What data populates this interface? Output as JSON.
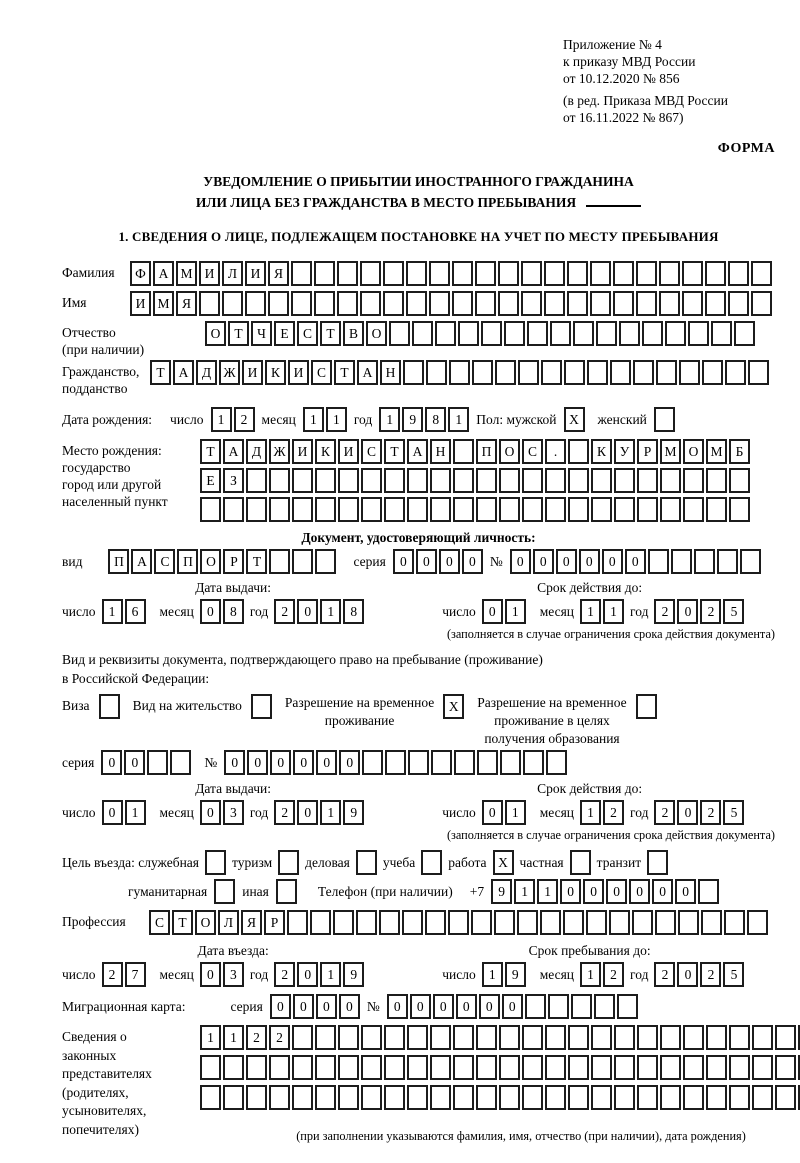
{
  "header": {
    "line1": "Приложение № 4",
    "line2": "к приказу МВД России",
    "line3": "от 10.12.2020 № 856",
    "line4": "(в ред. Приказа МВД России",
    "line5": "от 16.11.2022 № 867)",
    "forma": "ФОРМА"
  },
  "title": {
    "line1": "УВЕДОМЛЕНИЕ О ПРИБЫТИИ ИНОСТРАННОГО ГРАЖДАНИНА",
    "line2": "ИЛИ ЛИЦА БЕЗ ГРАЖДАНСТВА В МЕСТО ПРЕБЫВАНИЯ"
  },
  "section1_heading": "1. СВЕДЕНИЯ О ЛИЦЕ, ПОДЛЕЖАЩЕМ ПОСТАНОВКЕ НА УЧЕТ ПО МЕСТУ ПРЕБЫВАНИЯ",
  "labels": {
    "surname": "Фамилия",
    "name": "Имя",
    "patronymic": "Отчество",
    "patronymic2": "(при наличии)",
    "citizenship1": "Гражданство,",
    "citizenship2": "подданство",
    "birthdate": "Дата рождения:",
    "day": "число",
    "month": "месяц",
    "year": "год",
    "sex_male": "Пол: мужской",
    "sex_female": "женский",
    "birthplace1": "Место рождения:",
    "birthplace2": "государство",
    "birthplace3": "город или другой",
    "birthplace4": "населенный пункт",
    "iddoc_heading": "Документ, удостоверяющий личность:",
    "kind": "вид",
    "series": "серия",
    "number": "№",
    "issue_date": "Дата выдачи:",
    "expiry": "Срок действия до:",
    "expiry_note": "(заполняется в случае ограничения срока действия документа)",
    "resdoc1": "Вид и реквизиты документа, подтверждающего право на пребывание (проживание)",
    "resdoc2": "в Российской Федерации:",
    "visa": "Виза",
    "residence": "Вид на жительство",
    "rvp1": "Разрешение на временное",
    "rvp2": "проживание",
    "rvpedu1": "Разрешение на временное",
    "rvpedu2": "проживание в целях",
    "rvpedu3": "получения образования",
    "purpose": "Цель въезда: служебная",
    "tourism": "туризм",
    "business": "деловая",
    "study": "учеба",
    "work": "работа",
    "private": "частная",
    "transit": "транзит",
    "humanitarian": "гуманитарная",
    "other": "иная",
    "phone": "Телефон (при наличии)",
    "phone_prefix": "+7",
    "profession": "Профессия",
    "entry_date": "Дата въезда:",
    "stay_until": "Срок пребывания до:",
    "migcard": "Миграционная карта:",
    "rep1": "Сведения о",
    "rep2": "законных",
    "rep3": "представителях",
    "rep4": "(родителях,",
    "rep5": "усыновителях,",
    "rep6": "попечителях)",
    "rep_note": "(при заполнении указываются фамилия, имя, отчество (при наличии), дата рождения)"
  },
  "cells": {
    "surname": {
      "count": 28,
      "value": "ФАМИЛИЯ"
    },
    "name": {
      "count": 28,
      "value": "ИМЯ"
    },
    "patronymic": {
      "count": 24,
      "value": "ОТЧЕСТВО"
    },
    "citizenship": {
      "count": 27,
      "value": "ТАДЖИКИСТАН"
    },
    "birth_day": {
      "count": 2,
      "value": "12"
    },
    "birth_month": {
      "count": 2,
      "value": "11"
    },
    "birth_year": {
      "count": 4,
      "value": "1981"
    },
    "sex_male": {
      "count": 1,
      "value": "X"
    },
    "sex_female": {
      "count": 1,
      "value": ""
    },
    "birthplace1": {
      "count": 24,
      "value": "ТАДЖИКИСТАН ПОС. КУРМОМБ"
    },
    "birthplace2": {
      "count": 24,
      "value": "ЕЗ"
    },
    "birthplace3": {
      "count": 24,
      "value": ""
    },
    "iddoc_kind": {
      "count": 10,
      "value": "ПАСПОРТ"
    },
    "iddoc_series": {
      "count": 4,
      "value": "0000"
    },
    "iddoc_number": {
      "count": 11,
      "value": "000000"
    },
    "iddoc_issue_day": {
      "count": 2,
      "value": "16"
    },
    "iddoc_issue_month": {
      "count": 2,
      "value": "08"
    },
    "iddoc_issue_year": {
      "count": 4,
      "value": "2018"
    },
    "iddoc_exp_day": {
      "count": 2,
      "value": "01"
    },
    "iddoc_exp_month": {
      "count": 2,
      "value": "11"
    },
    "iddoc_exp_year": {
      "count": 4,
      "value": "2025"
    },
    "visa_box": {
      "count": 1,
      "value": ""
    },
    "residence_box": {
      "count": 1,
      "value": ""
    },
    "rvp_box": {
      "count": 1,
      "value": "X"
    },
    "rvp_edu_box": {
      "count": 1,
      "value": ""
    },
    "resdoc_series": {
      "count": 4,
      "value": "00"
    },
    "resdoc_number": {
      "count": 15,
      "value": "000000"
    },
    "resdoc_issue_day": {
      "count": 2,
      "value": "01"
    },
    "resdoc_issue_month": {
      "count": 2,
      "value": "03"
    },
    "resdoc_issue_year": {
      "count": 4,
      "value": "2019"
    },
    "resdoc_exp_day": {
      "count": 2,
      "value": "01"
    },
    "resdoc_exp_month": {
      "count": 2,
      "value": "12"
    },
    "resdoc_exp_year": {
      "count": 4,
      "value": "2025"
    },
    "purpose_official": {
      "count": 1,
      "value": ""
    },
    "purpose_tourism": {
      "count": 1,
      "value": ""
    },
    "purpose_business": {
      "count": 1,
      "value": ""
    },
    "purpose_study": {
      "count": 1,
      "value": ""
    },
    "purpose_work": {
      "count": 1,
      "value": "X"
    },
    "purpose_private": {
      "count": 1,
      "value": ""
    },
    "purpose_transit": {
      "count": 1,
      "value": ""
    },
    "purpose_humanitarian": {
      "count": 1,
      "value": ""
    },
    "purpose_other": {
      "count": 1,
      "value": ""
    },
    "phone": {
      "count": 10,
      "value": "911000000"
    },
    "profession": {
      "count": 27,
      "value": "СТОЛЯР"
    },
    "entry_day": {
      "count": 2,
      "value": "27"
    },
    "entry_month": {
      "count": 2,
      "value": "03"
    },
    "entry_year": {
      "count": 4,
      "value": "2019"
    },
    "stay_day": {
      "count": 2,
      "value": "19"
    },
    "stay_month": {
      "count": 2,
      "value": "12"
    },
    "stay_year": {
      "count": 4,
      "value": "2025"
    },
    "mig_series": {
      "count": 4,
      "value": "0000"
    },
    "mig_number": {
      "count": 11,
      "value": "000000"
    },
    "rep_row1": {
      "count": 28,
      "value": "1122"
    },
    "rep_row2": {
      "count": 28,
      "value": ""
    },
    "rep_row3": {
      "count": 28,
      "value": ""
    }
  }
}
